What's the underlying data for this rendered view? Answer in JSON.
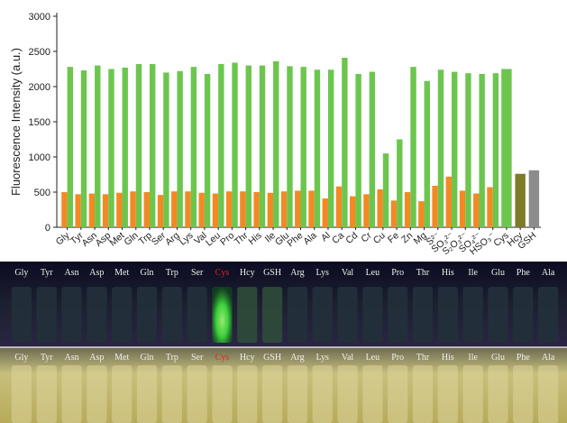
{
  "chart_data": {
    "type": "bar",
    "y_label": "Fluorescence Intensity (a.u.)",
    "categories": [
      "Gly",
      "Tyr",
      "Asn",
      "Asp",
      "Met",
      "Gln",
      "Trp",
      "Ser",
      "Arg",
      "Lys",
      "Val",
      "Leu",
      "Pro",
      "Thr",
      "His",
      "Ile",
      "Glu",
      "Phe",
      "Ala",
      "Al",
      "Ca",
      "Cd",
      "Cr",
      "Cu",
      "Fe",
      "Zn",
      "Mg",
      "S²⁻",
      "SO₃²⁻",
      "S₂O₃²⁻",
      "SO₄²⁻",
      "HSO₃⁻",
      "Cys",
      "Hcy",
      "GSH"
    ],
    "series": [
      {
        "color": "#f28a24",
        "values": [
          500,
          470,
          480,
          470,
          490,
          510,
          500,
          460,
          510,
          510,
          490,
          480,
          510,
          510,
          500,
          490,
          510,
          520,
          520,
          410,
          580,
          440,
          470,
          540,
          380,
          500,
          370,
          590,
          720,
          520,
          480,
          570,
          null,
          null,
          null
        ]
      },
      {
        "color": "#6cc64e",
        "values": [
          2280,
          2230,
          2300,
          2250,
          2270,
          2320,
          2320,
          2200,
          2220,
          2280,
          2180,
          2320,
          2340,
          2300,
          2300,
          2360,
          2290,
          2280,
          2240,
          2240,
          2410,
          2180,
          2210,
          1050,
          1250,
          2280,
          2080,
          2240,
          2210,
          2190,
          2180,
          2190,
          2250,
          null,
          null
        ]
      },
      {
        "colors": [
          "#a01e1e",
          "#7f7a2a",
          "#8c8c8c"
        ],
        "values": [
          null,
          null,
          null,
          null,
          null,
          null,
          null,
          null,
          null,
          null,
          null,
          null,
          null,
          null,
          null,
          null,
          null,
          null,
          null,
          null,
          null,
          null,
          null,
          null,
          null,
          null,
          null,
          null,
          null,
          null,
          null,
          null,
          null,
          760,
          810
        ]
      }
    ],
    "ylim": [
      0,
      3000
    ],
    "yticks": [
      0,
      500,
      1000,
      1500,
      2000,
      2500,
      3000
    ]
  },
  "photo": {
    "labels": [
      "Gly",
      "Tyr",
      "Asn",
      "Asp",
      "Met",
      "Gln",
      "Trp",
      "Ser",
      "Cys",
      "Hcy",
      "GSH",
      "Arg",
      "Lys",
      "Val",
      "Leu",
      "Pro",
      "Thr",
      "His",
      "Ile",
      "Glu",
      "Phe",
      "Ala"
    ],
    "highlight_index": 8,
    "highlight_color": "#e8231c"
  }
}
